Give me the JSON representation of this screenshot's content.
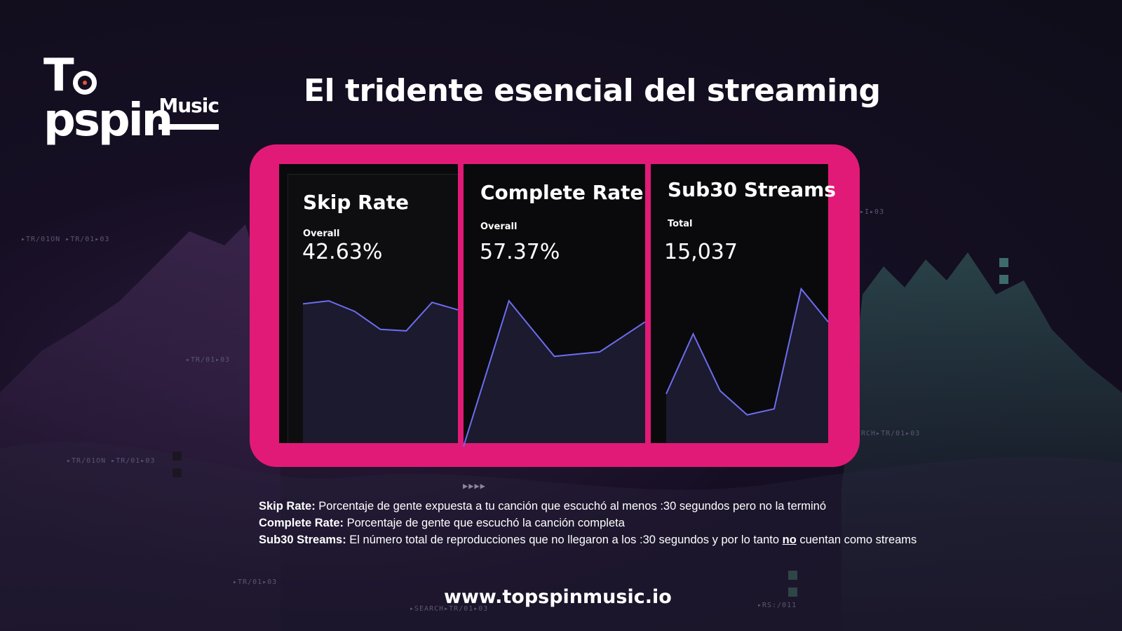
{
  "brand": {
    "logo_top": "Topspin",
    "logo_bottom": "Music"
  },
  "slide_title": "El tridente esencial del streaming",
  "cards": [
    {
      "title": "Skip Rate",
      "label": "Overall",
      "value": "42.63%",
      "trend": [
        0.9,
        0.92,
        0.85,
        0.73,
        0.72,
        0.91,
        0.86
      ]
    },
    {
      "title": "Complete Rate",
      "label": "Overall",
      "value": "57.37%",
      "trend": [
        -0.05,
        0.92,
        0.55,
        0.58,
        0.78
      ]
    },
    {
      "title": "Sub30 Streams",
      "label": "Total",
      "value": "15,037",
      "trend": [
        0.3,
        0.7,
        0.32,
        0.16,
        0.2,
        1.0,
        0.78
      ]
    }
  ],
  "legend": {
    "line1_term": "Skip Rate:",
    "line1_text": " Porcentaje de gente expuesta a tu canción que escuchó al menos :30 segundos pero no la terminó",
    "line2_term": "Complete Rate:",
    "line2_text": " Porcentaje de gente que escuchó la canción completa",
    "line3_term": "Sub30 Streams:",
    "line3_text_a": " El número total de reproducciones que no llegaron a los :30 segundos y por lo tanto ",
    "line3_emph": "no",
    "line3_text_b": " cuentan como streams"
  },
  "website": "www.topspinmusic.io",
  "deco_codes": [
    "▸TR/01ON ▸TR/01▸03",
    "▸TR/01▸03",
    "▸TR/01ON ▸TR/01▸03",
    "▸TR/01▸03",
    "▸SEARCH▸TR/01▸03",
    "▸RS:/011",
    "RCH▸TR/01▸03",
    "▸I▸03",
    "▶▶▶▶"
  ],
  "colors": {
    "accent": "#e21a77",
    "line": "#6d6cf0",
    "fill": "#1b1a2e"
  }
}
